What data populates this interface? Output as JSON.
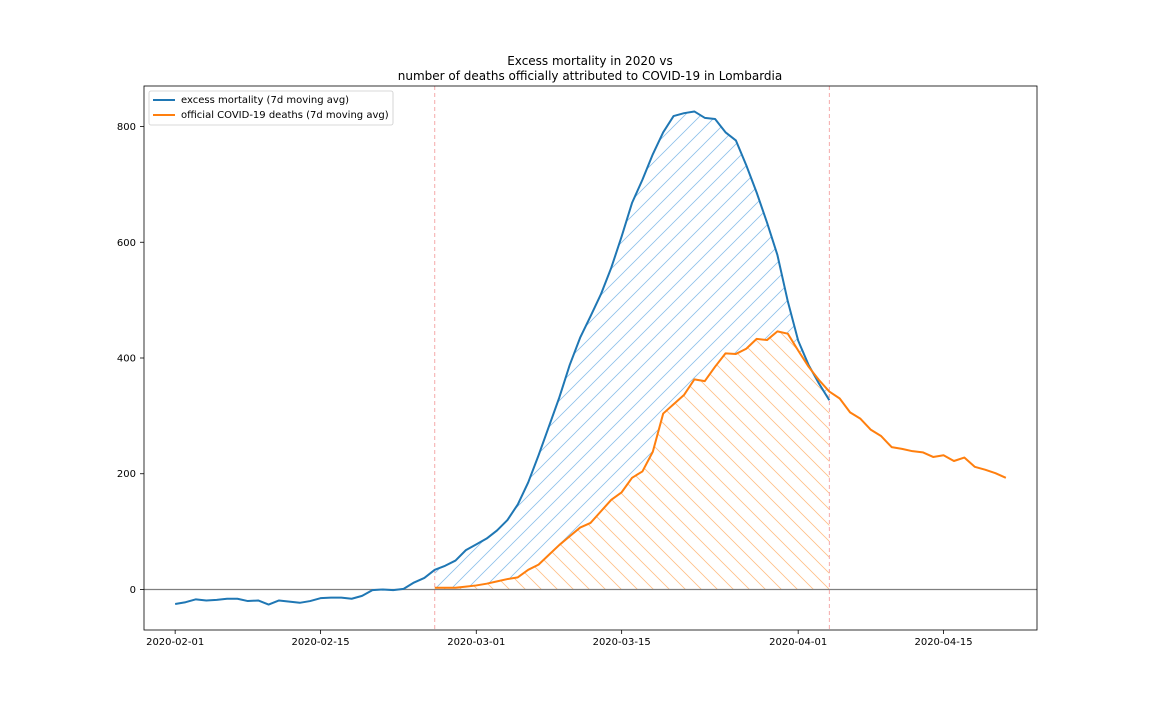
{
  "chart_data": {
    "type": "line",
    "title": "Excess mortality in 2020 vs",
    "subtitle": "number of deaths officially attributed to COVID-19 in Lombardia",
    "xlabel": "",
    "ylabel": "",
    "xlim": [
      "2020-01-29",
      "2020-04-24"
    ],
    "ylim": [
      -70,
      870
    ],
    "xticks": [
      "2020-02-01",
      "2020-02-15",
      "2020-03-01",
      "2020-03-15",
      "2020-04-01",
      "2020-04-15"
    ],
    "yticks": [
      0,
      200,
      400,
      600,
      800
    ],
    "grid": false,
    "legend_position": "top-left",
    "vlines": [
      "2020-02-26",
      "2020-04-04"
    ],
    "hline": 0,
    "series": [
      {
        "name": "excess mortality (7d moving avg)",
        "color": "#1f77b4",
        "start": "2020-02-01",
        "values": [
          -25,
          -22,
          -17,
          -19,
          -18,
          -16,
          -16,
          -20,
          -19,
          -26,
          -19,
          -21,
          -23,
          -20,
          -15,
          -14,
          -14,
          -16,
          -11,
          -1,
          0,
          -1,
          1,
          12,
          20,
          34,
          41,
          50,
          68,
          78,
          88,
          102,
          120,
          147,
          185,
          232,
          282,
          332,
          388,
          435,
          472,
          510,
          556,
          610,
          668,
          708,
          752,
          790,
          818,
          823,
          826,
          815,
          813,
          790,
          776,
          733,
          686,
          634,
          578,
          498,
          430,
          388,
          356,
          327
        ]
      },
      {
        "name": "official COVID-19 deaths (7d moving avg)",
        "color": "#ff7f0e",
        "start": "2020-02-26",
        "values": [
          3,
          3,
          3,
          5,
          7,
          10,
          14,
          18,
          21,
          34,
          43,
          60,
          77,
          92,
          107,
          115,
          135,
          155,
          168,
          193,
          204,
          238,
          304,
          320,
          336,
          363,
          360,
          385,
          408,
          407,
          416,
          433,
          431,
          446,
          442,
          413,
          385,
          362,
          342,
          330,
          306,
          295,
          276,
          265,
          246,
          243,
          239,
          237,
          229,
          232,
          222,
          228,
          212,
          207,
          201,
          193
        ]
      }
    ]
  }
}
